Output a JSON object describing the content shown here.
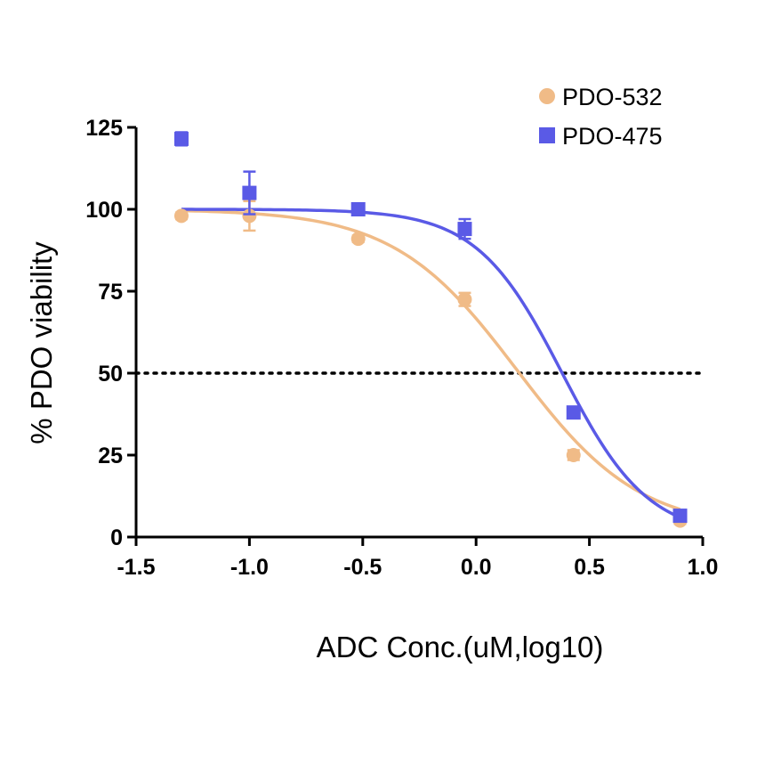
{
  "chart_data": {
    "type": "scatter",
    "xlabel": "ADC Conc.(uM,log10)",
    "ylabel": "% PDO viability",
    "xlim": [
      -1.5,
      1.0
    ],
    "ylim": [
      0,
      125
    ],
    "x_ticks": [
      -1.5,
      -1.0,
      -0.5,
      0.0,
      0.5,
      1.0
    ],
    "x_tick_labels": [
      "-1.5",
      "-1.0",
      "-0.5",
      "0.0",
      "0.5",
      "1.0"
    ],
    "y_ticks": [
      0,
      25,
      50,
      75,
      100,
      125
    ],
    "y_tick_labels": [
      "0",
      "25",
      "50",
      "75",
      "100",
      "125"
    ],
    "reference_line": {
      "y": 50,
      "style": "dotted"
    },
    "legend_position": "top-right",
    "series": [
      {
        "name": "PDO-532",
        "marker": "circle",
        "color": "#F0BB87",
        "x": [
          -1.3,
          -1.0,
          -0.52,
          -0.05,
          0.43,
          0.9
        ],
        "y": [
          98,
          98,
          91,
          72.5,
          25,
          5
        ],
        "err": [
          1,
          4.5,
          1,
          2,
          1.5,
          1
        ],
        "fit": {
          "top": 100,
          "bottom": 2,
          "logIC50": 0.18,
          "hill": 1.6
        }
      },
      {
        "name": "PDO-475",
        "marker": "square",
        "color": "#5A5AE6",
        "x": [
          -1.3,
          -1.0,
          -0.52,
          -0.05,
          0.43,
          0.9
        ],
        "y": [
          121.5,
          105,
          100,
          94,
          38,
          6.5
        ],
        "err": [
          2,
          6.5,
          0.5,
          3,
          1,
          1
        ],
        "fit": {
          "top": 100,
          "bottom": 0,
          "logIC50": 0.38,
          "hill": 2.3
        }
      }
    ]
  }
}
